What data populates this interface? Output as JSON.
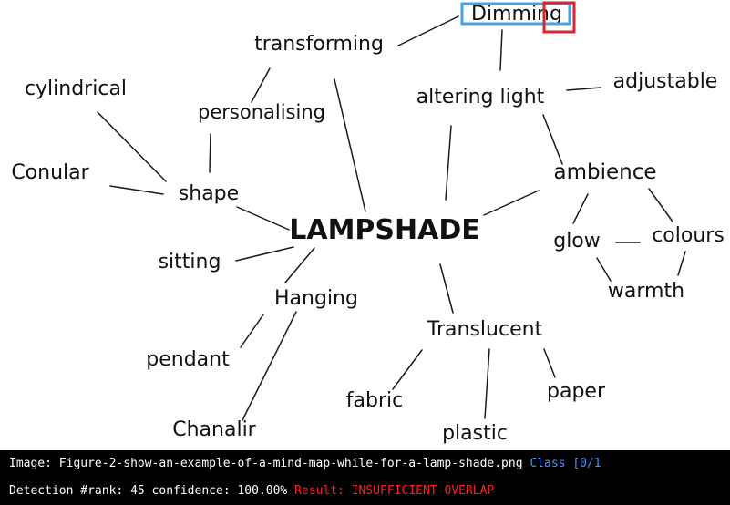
{
  "image_view": {
    "nodes": [
      {
        "id": "dimming",
        "label": "Dimming"
      },
      {
        "id": "transforming",
        "label": "transforming"
      },
      {
        "id": "altering_light",
        "label": "altering light"
      },
      {
        "id": "adjustable",
        "label": "adjustable"
      },
      {
        "id": "cylindrical",
        "label": "cylindrical"
      },
      {
        "id": "personalising",
        "label": "personalising"
      },
      {
        "id": "conular",
        "label": "Conular"
      },
      {
        "id": "shape",
        "label": "shape"
      },
      {
        "id": "ambience",
        "label": "ambience"
      },
      {
        "id": "lampshade",
        "label": "LAMPSHADE"
      },
      {
        "id": "glow",
        "label": "glow"
      },
      {
        "id": "colours",
        "label": "colours"
      },
      {
        "id": "sitting",
        "label": "sitting"
      },
      {
        "id": "hanging",
        "label": "Hanging"
      },
      {
        "id": "warmth",
        "label": "warmth"
      },
      {
        "id": "pendant",
        "label": "pendant"
      },
      {
        "id": "translucent",
        "label": "Translucent"
      },
      {
        "id": "fabric",
        "label": "fabric"
      },
      {
        "id": "paper",
        "label": "paper"
      },
      {
        "id": "chandelier",
        "label": "Chanalir"
      },
      {
        "id": "plastic",
        "label": "plastic"
      }
    ],
    "edges": [
      [
        "transforming",
        "dimming"
      ],
      [
        "dimming",
        "altering_light"
      ],
      [
        "transforming",
        "personalising"
      ],
      [
        "transforming",
        "lampshade"
      ],
      [
        "altering_light",
        "adjustable"
      ],
      [
        "altering_light",
        "lampshade"
      ],
      [
        "altering_light",
        "ambience"
      ],
      [
        "cylindrical",
        "shape"
      ],
      [
        "personalising",
        "shape"
      ],
      [
        "conular",
        "shape"
      ],
      [
        "shape",
        "lampshade"
      ],
      [
        "ambience",
        "lampshade"
      ],
      [
        "ambience",
        "glow"
      ],
      [
        "ambience",
        "colours"
      ],
      [
        "glow",
        "colours"
      ],
      [
        "glow",
        "warmth"
      ],
      [
        "colours",
        "warmth"
      ],
      [
        "sitting",
        "lampshade"
      ],
      [
        "lampshade",
        "hanging"
      ],
      [
        "hanging",
        "pendant"
      ],
      [
        "hanging",
        "chandelier"
      ],
      [
        "lampshade",
        "translucent"
      ],
      [
        "translucent",
        "fabric"
      ],
      [
        "translucent",
        "plastic"
      ],
      [
        "translucent",
        "paper"
      ]
    ],
    "highlight_colors": {
      "detection_box": "#4aa3df",
      "target_box": "#d9262c"
    }
  },
  "status": {
    "image_label": "Image:",
    "image_filename": "Figure-2-show-an-example-of-a-mind-map-while-for-a-lamp-shade.png",
    "class_label": "Class [0/1",
    "detection_label": "Detection #rank:",
    "rank": "45",
    "confidence_label": "confidence:",
    "confidence": "100.00%",
    "result_text": "Result: INSUFFICIENT OVERLAP"
  }
}
